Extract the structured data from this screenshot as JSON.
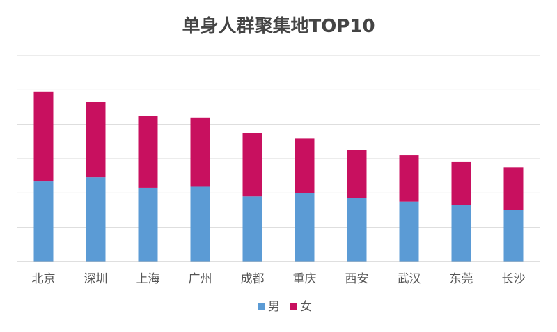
{
  "chart_data": {
    "type": "bar",
    "stacked": true,
    "title": "单身人群聚集地TOP10",
    "categories": [
      "北京",
      "深圳",
      "上海",
      "广州",
      "成都",
      "重庆",
      "西安",
      "武汉",
      "东莞",
      "长沙"
    ],
    "series": [
      {
        "name": "男",
        "color": "#5b9bd5",
        "values": [
          2.35,
          2.45,
          2.15,
          2.2,
          1.9,
          2.0,
          1.85,
          1.75,
          1.65,
          1.5
        ]
      },
      {
        "name": "女",
        "color": "#c8105f",
        "values": [
          2.6,
          2.2,
          2.1,
          2.0,
          1.85,
          1.6,
          1.4,
          1.35,
          1.25,
          1.25
        ]
      }
    ],
    "ylim": [
      0,
      6
    ],
    "grid": true,
    "y_tick_labels": false,
    "legend_position": "bottom"
  }
}
